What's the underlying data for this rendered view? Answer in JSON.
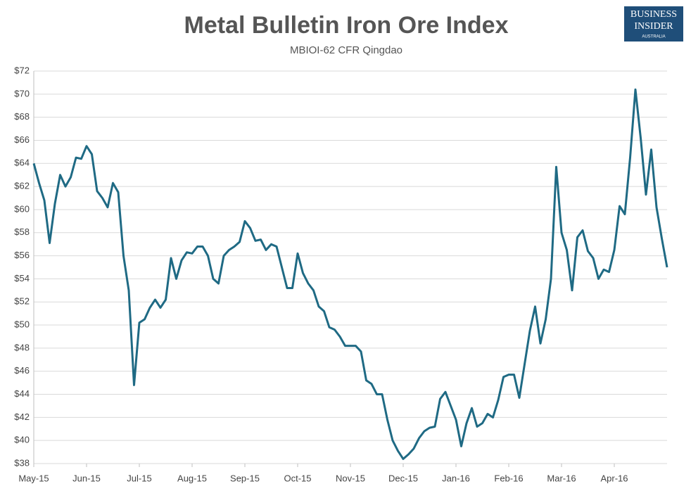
{
  "chart_data": {
    "type": "line",
    "title": "Metal Bulletin Iron Ore Index",
    "subtitle": "MBIOI-62 CFR Qingdao",
    "logo": {
      "line1": "BUSINESS",
      "line2": "INSIDER",
      "line3": "AUSTRALIA"
    },
    "categories": [
      "May-15",
      null,
      null,
      null,
      null,
      null,
      null,
      null,
      null,
      null,
      "Jun-15",
      null,
      null,
      null,
      null,
      null,
      null,
      null,
      null,
      null,
      "Jul-15",
      null,
      null,
      null,
      null,
      null,
      null,
      null,
      null,
      null,
      "Aug-15",
      null,
      null,
      null,
      null,
      null,
      null,
      null,
      null,
      null,
      "Sep-15",
      null,
      null,
      null,
      null,
      null,
      null,
      null,
      null,
      null,
      "Oct-15",
      null,
      null,
      null,
      null,
      null,
      null,
      null,
      null,
      null,
      "Nov-15",
      null,
      null,
      null,
      null,
      null,
      null,
      null,
      null,
      null,
      "Dec-15",
      null,
      null,
      null,
      null,
      null,
      null,
      null,
      null,
      null,
      "Jan-16",
      null,
      null,
      null,
      null,
      null,
      null,
      null,
      null,
      null,
      "Feb-16",
      null,
      null,
      null,
      null,
      null,
      null,
      null,
      null,
      null,
      "Mar-16",
      null,
      null,
      null,
      null,
      null,
      null,
      null,
      null,
      null,
      "Apr-16",
      null,
      null,
      null,
      null,
      null,
      null,
      null,
      null,
      null,
      null
    ],
    "series": [
      {
        "name": "MBIOI-62",
        "color": "#1f6a84",
        "values": [
          64,
          62.3,
          60.8,
          57.1,
          60.5,
          63,
          62,
          62.8,
          64.5,
          64.4,
          65.5,
          64.8,
          61.6,
          61,
          60.2,
          62.3,
          61.5,
          56,
          53,
          44.8,
          50.2,
          50.5,
          51.5,
          52.2,
          51.5,
          52.2,
          55.8,
          54,
          55.6,
          56.3,
          56.2,
          56.8,
          56.8,
          56,
          54,
          53.6,
          56,
          56.5,
          56.8,
          57.2,
          59,
          58.4,
          57.3,
          57.4,
          56.5,
          57,
          56.8,
          55,
          53.2,
          53.2,
          56.2,
          54.5,
          53.6,
          53,
          51.6,
          51.2,
          49.8,
          49.6,
          49,
          48.2,
          48.2,
          48.2,
          47.7,
          45.2,
          44.9,
          44,
          44,
          41.8,
          40,
          39.1,
          38.4,
          38.8,
          39.3,
          40.2,
          40.8,
          41.1,
          41.2,
          43.6,
          44.2,
          43,
          41.8,
          39.5,
          41.5,
          42.8,
          41.2,
          41.5,
          42.3,
          42,
          43.5,
          45.5,
          45.7,
          45.7,
          43.7,
          46.6,
          49.5,
          51.6,
          48.4,
          50.5,
          54,
          63.7,
          58,
          56.5,
          53,
          57.6,
          58.2,
          56.4,
          55.8,
          54,
          54.8,
          54.6,
          56.5,
          60.3,
          59.6,
          64.5,
          70.4,
          66.2,
          61.3,
          65.2,
          60.2,
          57.5,
          55
        ]
      }
    ],
    "ylim": [
      38,
      72
    ],
    "yticks": [
      {
        "value": 38,
        "label": "$38"
      },
      {
        "value": 40,
        "label": "$40"
      },
      {
        "value": 42,
        "label": "$42"
      },
      {
        "value": 44,
        "label": "$44"
      },
      {
        "value": 46,
        "label": "$46"
      },
      {
        "value": 48,
        "label": "$48"
      },
      {
        "value": 50,
        "label": "$50"
      },
      {
        "value": 52,
        "label": "$52"
      },
      {
        "value": 54,
        "label": "$54"
      },
      {
        "value": 56,
        "label": "$56"
      },
      {
        "value": 58,
        "label": "$58"
      },
      {
        "value": 60,
        "label": "$60"
      },
      {
        "value": 62,
        "label": "$62"
      },
      {
        "value": 64,
        "label": "$64"
      },
      {
        "value": 66,
        "label": "$66"
      },
      {
        "value": 68,
        "label": "$68"
      },
      {
        "value": 70,
        "label": "$70"
      },
      {
        "value": 72,
        "label": "$72"
      }
    ],
    "grid": true
  }
}
